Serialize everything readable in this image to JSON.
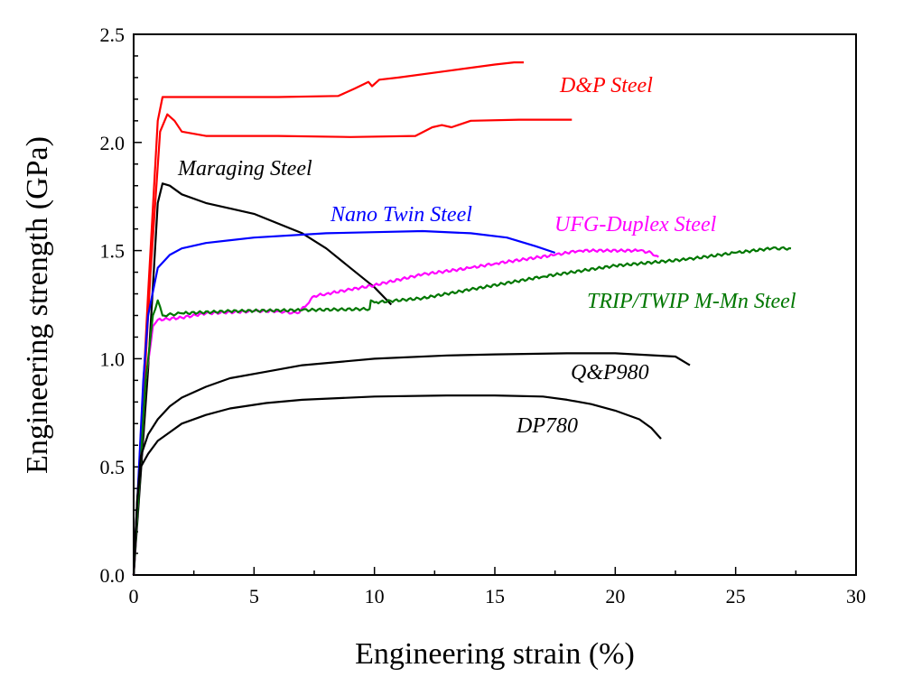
{
  "chart_data": {
    "type": "line",
    "title": "",
    "xlabel": "Engineering strain (%)",
    "ylabel": "Engineering strength (GPa)",
    "xlim": [
      0,
      30
    ],
    "ylim": [
      0,
      2.5
    ],
    "xticks": [
      "0",
      "5",
      "10",
      "15",
      "20",
      "25",
      "30"
    ],
    "yticks": [
      "0.0",
      "0.5",
      "1.0",
      "1.5",
      "2.0",
      "2.5"
    ],
    "grid": false,
    "series": [
      {
        "name": "D&P Steel",
        "color": "#ff0000",
        "x": [
          0,
          0.6,
          1.0,
          1.2,
          3,
          6,
          8.5,
          9.2,
          9.75,
          9.9,
          10.2,
          11,
          13,
          15,
          15.8,
          16.2
        ],
        "y": [
          0,
          1.3,
          2.1,
          2.21,
          2.21,
          2.21,
          2.215,
          2.25,
          2.28,
          2.26,
          2.29,
          2.3,
          2.33,
          2.36,
          2.37,
          2.37
        ]
      },
      {
        "name": "D&P Steel",
        "color": "#ff0000",
        "x": [
          0,
          0.7,
          1.1,
          1.4,
          1.7,
          2.0,
          3,
          6,
          9,
          11.7,
          12.4,
          12.8,
          13.2,
          14,
          16,
          18.2
        ],
        "y": [
          0,
          1.4,
          2.05,
          2.13,
          2.1,
          2.05,
          2.03,
          2.03,
          2.025,
          2.03,
          2.07,
          2.08,
          2.07,
          2.1,
          2.105,
          2.105
        ]
      },
      {
        "name": "Maraging Steel",
        "color": "#000000",
        "x": [
          0,
          0.6,
          1.0,
          1.2,
          1.5,
          2,
          3,
          5,
          7,
          8,
          9,
          10,
          10.7
        ],
        "y": [
          0,
          0.95,
          1.72,
          1.81,
          1.8,
          1.76,
          1.72,
          1.67,
          1.58,
          1.51,
          1.42,
          1.33,
          1.25
        ]
      },
      {
        "name": "Nano Twin Steel",
        "color": "#0000ff",
        "x": [
          0,
          0.4,
          0.6,
          1.0,
          1.5,
          2,
          3,
          5,
          8,
          10,
          12,
          14,
          15.5,
          16.7,
          17.5
        ],
        "y": [
          0,
          0.9,
          1.2,
          1.42,
          1.48,
          1.51,
          1.535,
          1.56,
          1.58,
          1.585,
          1.59,
          1.58,
          1.56,
          1.52,
          1.49
        ]
      },
      {
        "name": "UFG-Duplex Steel",
        "color": "#ff00ff",
        "x": [
          0,
          0.5,
          0.8,
          1.0,
          2,
          3,
          5,
          6,
          6.8,
          7.2,
          7.5,
          8,
          9,
          10,
          12,
          14,
          15,
          17.5,
          18.5,
          21,
          21.5,
          21.8
        ],
        "y": [
          0,
          0.9,
          1.15,
          1.18,
          1.19,
          1.21,
          1.22,
          1.22,
          1.21,
          1.25,
          1.29,
          1.3,
          1.32,
          1.34,
          1.39,
          1.42,
          1.44,
          1.48,
          1.5,
          1.5,
          1.49,
          1.47
        ],
        "noisy": true
      },
      {
        "name": "TRIP/TWIP M-Mn Steel",
        "color": "#007700",
        "x": [
          0,
          0.5,
          0.8,
          1.0,
          1.1,
          1.2,
          2,
          4,
          7,
          9.8,
          9.85,
          10,
          12,
          14,
          17,
          20,
          23,
          25,
          26.5,
          27.3
        ],
        "y": [
          0,
          0.9,
          1.2,
          1.27,
          1.24,
          1.2,
          1.21,
          1.22,
          1.225,
          1.23,
          1.27,
          1.26,
          1.28,
          1.32,
          1.38,
          1.43,
          1.46,
          1.49,
          1.51,
          1.51
        ],
        "noisy": true
      },
      {
        "name": "Q&P980",
        "color": "#000000",
        "x": [
          0,
          0.15,
          0.3,
          0.6,
          1,
          1.5,
          2,
          3,
          4,
          5.5,
          7,
          10,
          13,
          15,
          18,
          20,
          22.5,
          23.1
        ],
        "y": [
          0,
          0.35,
          0.55,
          0.65,
          0.72,
          0.78,
          0.82,
          0.87,
          0.91,
          0.94,
          0.97,
          1.0,
          1.015,
          1.02,
          1.025,
          1.025,
          1.01,
          0.97
        ]
      },
      {
        "name": "DP780",
        "color": "#000000",
        "x": [
          0,
          0.15,
          0.3,
          0.6,
          1,
          1.5,
          2,
          3,
          4,
          5.5,
          7,
          10,
          13,
          15,
          17,
          18,
          19,
          20,
          21,
          21.5,
          21.9
        ],
        "y": [
          0,
          0.35,
          0.5,
          0.56,
          0.62,
          0.66,
          0.7,
          0.74,
          0.77,
          0.795,
          0.81,
          0.825,
          0.83,
          0.83,
          0.825,
          0.81,
          0.79,
          0.76,
          0.72,
          0.68,
          0.63
        ]
      }
    ]
  }
}
